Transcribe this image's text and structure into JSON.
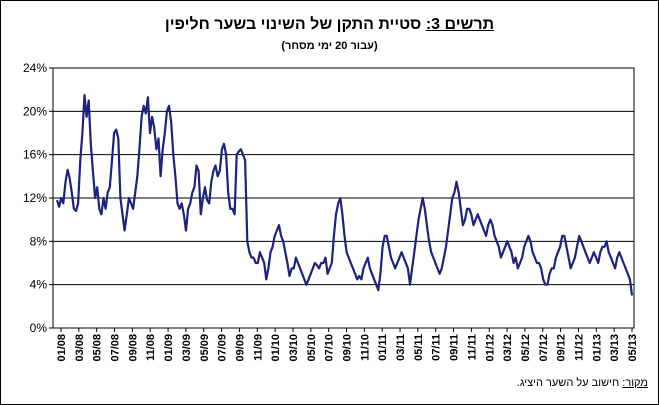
{
  "chart_data": {
    "type": "line",
    "title_label": "תרשים 3:",
    "title_text": "סטיית התקן של השינוי בשער חליפין",
    "subtitle": "(עבור 20 ימי מסחר)",
    "ylim": [
      0,
      24
    ],
    "yticks": [
      0,
      4,
      8,
      12,
      16,
      20,
      24
    ],
    "ytick_labels": [
      "0%",
      "4%",
      "8%",
      "12%",
      "16%",
      "20%",
      "24%"
    ],
    "xtick_labels": [
      "01/08",
      "03/08",
      "05/08",
      "07/08",
      "09/08",
      "11/08",
      "01/09",
      "03/09",
      "05/09",
      "07/09",
      "09/09",
      "11/09",
      "01/10",
      "03/10",
      "05/10",
      "07/10",
      "09/10",
      "11/10",
      "01/11",
      "03/11",
      "05/11",
      "07/11",
      "09/11",
      "11/11",
      "01/12",
      "03/12",
      "05/12",
      "07/12",
      "09/12",
      "11/12",
      "01/13",
      "03/13",
      "05/13"
    ],
    "grid": true,
    "color": "#1a237e",
    "series": [
      {
        "values": [
          11.8,
          11.2,
          12.0,
          11.5,
          13.5,
          14.6,
          13.8,
          12.5,
          11.0,
          10.8,
          11.5,
          15.5,
          18.0,
          21.5,
          19.5,
          21.0,
          17.0,
          14.5,
          12.0,
          13.0,
          11.0,
          10.5,
          12.0,
          11.0,
          12.5,
          13.0,
          15.5,
          18.0,
          18.3,
          17.5,
          12.0,
          10.5,
          9.0,
          10.5,
          12.0,
          11.5,
          11.0,
          12.5,
          14.0,
          16.5,
          19.5,
          20.5,
          19.8,
          21.3,
          18.0,
          19.5,
          18.5,
          16.5,
          17.5,
          14.0,
          16.5,
          18.0,
          20.0,
          20.5,
          19.0,
          16.0,
          14.0,
          11.5,
          11.0,
          11.5,
          10.5,
          9.0,
          11.0,
          11.5,
          12.5,
          13.0,
          15.0,
          14.5,
          10.5,
          12.0,
          13.0,
          11.8,
          11.5,
          13.5,
          14.5,
          15.0,
          14.0,
          14.5,
          16.5,
          17.0,
          16.0,
          12.5,
          11.0,
          11.0,
          10.5,
          16.0,
          16.3,
          16.5,
          16.0,
          15.5,
          8.0,
          7.0,
          6.5,
          6.5,
          6.0,
          6.0,
          7.0,
          6.5,
          6.0,
          4.5,
          5.5,
          7.0,
          7.5,
          8.5,
          9.0,
          9.5,
          8.5,
          8.0,
          7.0,
          6.0,
          4.8,
          5.5,
          5.5,
          6.5,
          6.0,
          5.5,
          5.0,
          4.5,
          4.0,
          4.5,
          5.0,
          5.5,
          6.0,
          5.8,
          5.5,
          6.0,
          6.0,
          6.5,
          5.0,
          5.5,
          6.0,
          8.5,
          10.5,
          11.5,
          12.0,
          10.5,
          8.5,
          7.0,
          6.5,
          6.0,
          5.5,
          5.0,
          4.5,
          4.8,
          4.5,
          5.5,
          6.0,
          6.5,
          5.5,
          5.0,
          4.5,
          4.0,
          3.5,
          5.0,
          7.5,
          8.5,
          8.5,
          7.5,
          6.5,
          6.0,
          5.5,
          6.0,
          6.5,
          7.0,
          6.5,
          6.0,
          5.5,
          4.0,
          5.5,
          7.0,
          8.5,
          10.0,
          11.0,
          12.0,
          11.0,
          9.5,
          8.0,
          7.0,
          6.5,
          6.0,
          5.5,
          5.0,
          5.5,
          6.5,
          7.5,
          9.0,
          10.5,
          12.0,
          12.5,
          13.5,
          12.5,
          11.0,
          9.5,
          10.0,
          11.0,
          11.0,
          10.5,
          9.5,
          10.0,
          10.5,
          10.0,
          9.5,
          9.0,
          8.5,
          9.5,
          10.0,
          9.5,
          8.5,
          8.0,
          7.5,
          6.5,
          7.0,
          7.5,
          8.0,
          7.5,
          7.0,
          6.0,
          6.5,
          5.5,
          6.0,
          6.5,
          7.5,
          8.0,
          8.5,
          8.0,
          7.0,
          6.5,
          6.0,
          6.0,
          5.5,
          4.5,
          4.0,
          4.0,
          5.0,
          5.5,
          5.5,
          6.5,
          7.0,
          7.5,
          8.5,
          8.5,
          7.5,
          6.5,
          5.5,
          6.0,
          6.5,
          7.5,
          8.5,
          8.0,
          7.5,
          7.0,
          6.5,
          6.0,
          6.5,
          7.0,
          6.5,
          6.0,
          7.0,
          7.5,
          7.5,
          8.0,
          7.0,
          6.5,
          6.0,
          5.5,
          6.5,
          7.0,
          6.5,
          6.0,
          5.5,
          5.0,
          4.5,
          3.0
        ]
      }
    ],
    "source_label": "מקור:",
    "source_text": "חישוב על השער היציג."
  }
}
